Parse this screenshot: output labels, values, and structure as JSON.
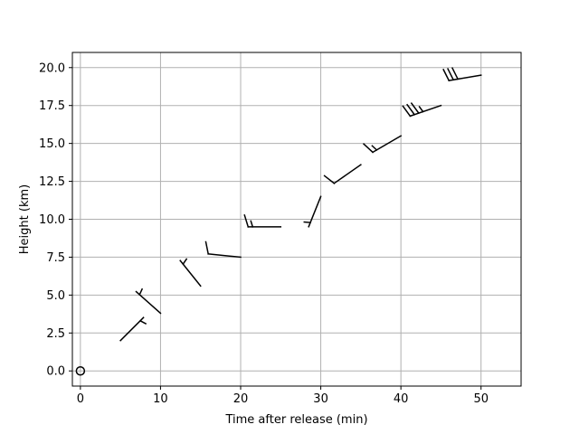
{
  "chart_data": {
    "type": "scatter",
    "mark": "wind-barb",
    "title": "",
    "xlabel": "Time after release (min)",
    "ylabel": "Height (km)",
    "xlim": [
      -1,
      55
    ],
    "ylim": [
      -1,
      21
    ],
    "grid": true,
    "x_ticks": [
      0,
      10,
      20,
      30,
      40,
      50
    ],
    "y_ticks": [
      0.0,
      2.5,
      5.0,
      7.5,
      10.0,
      12.5,
      15.0,
      17.5,
      20.0
    ],
    "x_tick_labels": [
      "0",
      "10",
      "20",
      "30",
      "40",
      "50"
    ],
    "y_tick_labels": [
      "0.0",
      "2.5",
      "5.0",
      "7.5",
      "10.0",
      "12.5",
      "15.0",
      "17.5",
      "20.0"
    ],
    "barbs": [
      {
        "time": 0,
        "height": 0.0,
        "u": 0,
        "v": 0,
        "calm": true
      },
      {
        "time": 5,
        "height": 2.0,
        "u": -5,
        "v": -5
      },
      {
        "time": 10,
        "height": 3.8,
        "u": 4.5,
        "v": -4
      },
      {
        "time": 15,
        "height": 5.6,
        "u": 4,
        "v": -5
      },
      {
        "time": 20,
        "height": 7.5,
        "u": 10,
        "v": -1
      },
      {
        "time": 25,
        "height": 9.5,
        "u": 15,
        "v": 0
      },
      {
        "time": 30,
        "height": 11.5,
        "u": 2,
        "v": 5
      },
      {
        "time": 35,
        "height": 13.6,
        "u": 10,
        "v": 7
      },
      {
        "time": 40,
        "height": 15.5,
        "u": 12,
        "v": 7
      },
      {
        "time": 45,
        "height": 17.5,
        "u": 35,
        "v": 12
      },
      {
        "time": 50,
        "height": 19.5,
        "u": 30,
        "v": 5
      }
    ]
  }
}
